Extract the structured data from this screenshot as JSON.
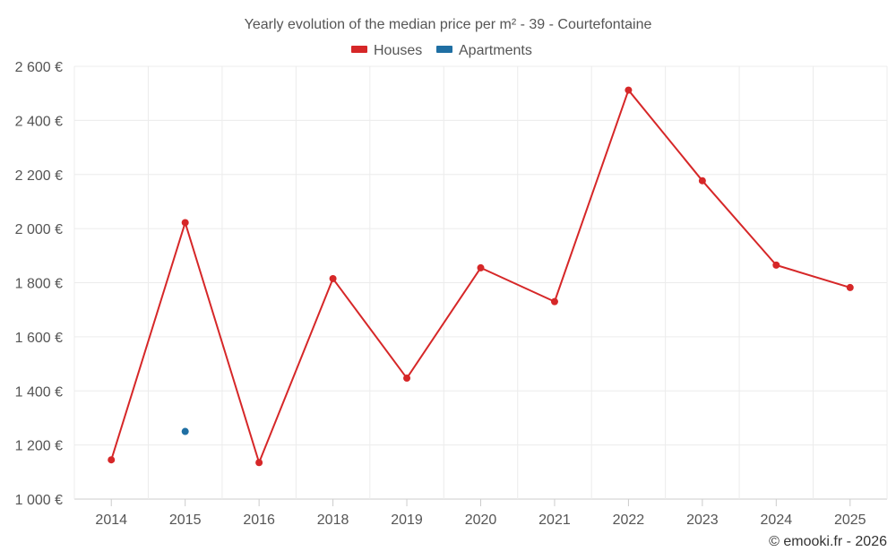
{
  "chart_data": {
    "type": "line",
    "title": "Yearly evolution of the median price per m² - 39 - Courtefontaine",
    "categories": [
      "2014",
      "2015",
      "2016",
      "2018",
      "2019",
      "2020",
      "2021",
      "2022",
      "2023",
      "2024",
      "2025"
    ],
    "series": [
      {
        "name": "Houses",
        "color": "#d62728",
        "values": [
          1145,
          2022,
          1135,
          1815,
          1447,
          1855,
          1730,
          2512,
          2177,
          1865,
          1782
        ]
      },
      {
        "name": "Apartments",
        "color": "#1f6fa3",
        "values": [
          null,
          1250,
          null,
          null,
          null,
          null,
          null,
          null,
          null,
          null,
          null
        ]
      }
    ],
    "ylim": [
      1000,
      2600
    ],
    "yticks": [
      1000,
      1200,
      1400,
      1600,
      1800,
      2000,
      2200,
      2400,
      2600
    ],
    "ytick_labels": [
      "1 000 €",
      "1 200 €",
      "1 400 €",
      "1 600 €",
      "1 800 €",
      "2 000 €",
      "2 200 €",
      "2 400 €",
      "2 600 €"
    ],
    "xlabel": "",
    "ylabel": "",
    "grid": true,
    "legend_position": "top-center"
  },
  "credit": "© emooki.fr - 2026"
}
